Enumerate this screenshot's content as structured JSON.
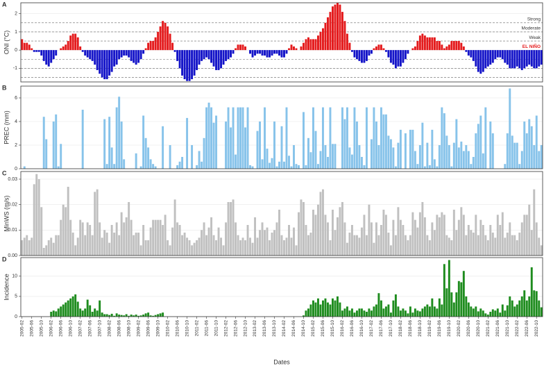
{
  "chart_data": [
    {
      "type": "bar",
      "title": "A",
      "ylabel": "ONI (°C)",
      "pos_color": "#e41a1c",
      "neg_color": "#1414c8",
      "ylim": [
        -1.75,
        2.6
      ],
      "yticks": [
        -1,
        0,
        1,
        2
      ],
      "grid": true,
      "hlines": [
        1.5,
        1,
        0.5,
        -0.5,
        -1,
        -1.5
      ],
      "annotations": [
        {
          "text": "Strong",
          "y": 1.5,
          "color": "#333333"
        },
        {
          "text": "Moderate",
          "y": 1,
          "color": "#333333"
        },
        {
          "text": "Weak",
          "y": 0.5,
          "color": "#333333"
        },
        {
          "text": "EL NIÑO",
          "y": 0,
          "color": "#e41a1c"
        }
      ],
      "values": [
        0.6,
        0.4,
        0.4,
        0.3,
        0.1,
        -0.1,
        -0.1,
        -0.1,
        -0.3,
        -0.6,
        -0.8,
        -0.9,
        -0.7,
        -0.5,
        -0.3,
        0.0,
        0.1,
        0.2,
        0.3,
        0.5,
        0.8,
        0.9,
        0.9,
        0.7,
        0.2,
        -0.1,
        -0.3,
        -0.4,
        -0.5,
        -0.6,
        -0.8,
        -1.1,
        -1.3,
        -1.5,
        -1.6,
        -1.6,
        -1.4,
        -1.2,
        -0.9,
        -0.8,
        -0.5,
        -0.4,
        -0.3,
        -0.3,
        -0.4,
        -0.6,
        -0.7,
        -0.8,
        -0.7,
        -0.5,
        -0.2,
        0.1,
        0.4,
        0.5,
        0.5,
        0.7,
        1.0,
        1.3,
        1.6,
        1.5,
        1.3,
        0.9,
        0.4,
        -0.1,
        -0.6,
        -1.0,
        -1.4,
        -1.6,
        -1.7,
        -1.7,
        -1.6,
        -1.4,
        -1.1,
        -0.8,
        -0.6,
        -0.5,
        -0.4,
        -0.5,
        -0.7,
        -0.9,
        -1.1,
        -1.1,
        -1.0,
        -0.8,
        -0.6,
        -0.5,
        -0.4,
        -0.2,
        0.1,
        0.3,
        0.3,
        0.3,
        0.2,
        0.0,
        -0.2,
        -0.4,
        -0.3,
        -0.2,
        -0.2,
        -0.3,
        -0.3,
        -0.4,
        -0.4,
        -0.3,
        -0.2,
        -0.2,
        -0.3,
        -0.4,
        -0.4,
        -0.2,
        0.1,
        0.3,
        0.2,
        0.1,
        0.0,
        0.2,
        0.4,
        0.6,
        0.7,
        0.6,
        0.6,
        0.6,
        0.8,
        1.0,
        1.2,
        1.5,
        1.8,
        2.1,
        2.4,
        2.5,
        2.6,
        2.5,
        2.1,
        1.6,
        0.9,
        0.4,
        -0.1,
        -0.4,
        -0.5,
        -0.6,
        -0.7,
        -0.7,
        -0.6,
        -0.3,
        -0.2,
        0.1,
        0.2,
        0.3,
        0.3,
        0.1,
        -0.1,
        -0.4,
        -0.7,
        -0.8,
        -1.0,
        -0.9,
        -0.9,
        -0.7,
        -0.5,
        -0.2,
        0.0,
        0.1,
        0.2,
        0.5,
        0.8,
        0.9,
        0.8,
        0.7,
        0.7,
        0.7,
        0.7,
        0.5,
        0.5,
        0.3,
        0.1,
        0.2,
        0.3,
        0.5,
        0.5,
        0.5,
        0.5,
        0.4,
        0.2,
        -0.1,
        -0.3,
        -0.4,
        -0.6,
        -0.9,
        -1.2,
        -1.3,
        -1.2,
        -1.0,
        -0.9,
        -0.8,
        -0.7,
        -0.5,
        -0.4,
        -0.4,
        -0.5,
        -0.7,
        -0.8,
        -1.0,
        -1.0,
        -1.0,
        -0.9,
        -1.0,
        -1.1,
        -1.0,
        -0.9,
        -0.8,
        -0.9,
        -1.0,
        -1.0,
        -0.9,
        -0.8
      ]
    },
    {
      "type": "bar",
      "title": "B",
      "ylabel": "PREC (mm)",
      "color": "#87c3ea",
      "ylim": [
        0,
        7
      ],
      "yticks": [
        0,
        2,
        4,
        6
      ],
      "grid": true,
      "values": [
        0,
        0.2,
        0,
        0,
        0,
        0,
        0,
        0,
        0,
        4.4,
        2.5,
        0,
        0,
        4.0,
        4.6,
        0.2,
        2.1,
        0,
        0,
        0,
        0,
        0,
        0,
        0,
        0,
        5.0,
        0,
        0,
        0,
        0,
        0,
        0,
        0,
        0,
        4.2,
        0.4,
        4.4,
        1.8,
        0.4,
        5.2,
        6.1,
        4.0,
        0.8,
        0,
        0,
        0,
        0,
        1.3,
        0,
        0.2,
        4.5,
        2.6,
        1.8,
        0.8,
        0.4,
        0.2,
        0,
        0,
        3.6,
        0,
        0,
        2.0,
        0,
        0,
        0.3,
        0.6,
        1.0,
        0,
        4.3,
        0,
        2.0,
        0,
        0.3,
        1.5,
        0.6,
        2.6,
        5.2,
        5.6,
        5.2,
        3.9,
        4.5,
        0,
        0,
        0,
        4.0,
        5.2,
        3.5,
        5.2,
        1.2,
        5.2,
        5.2,
        5.2,
        3.5,
        5.2,
        0.3,
        0.2,
        0,
        3.2,
        4.0,
        0.8,
        5.2,
        1.7,
        0.5,
        0.9,
        4.0,
        0.2,
        0.6,
        3.6,
        0.6,
        5.2,
        1.1,
        0.2,
        2.0,
        0.4,
        0.3,
        0,
        4.8,
        0.3,
        2.6,
        1.4,
        5.2,
        3.2,
        0.4,
        1.5,
        5.2,
        2.0,
        1.0,
        5.2,
        2.1,
        2.1,
        0,
        0,
        5.2,
        4.2,
        5.2,
        1.8,
        1.2,
        5.2,
        4.0,
        2.0,
        1.0,
        0.3,
        5.2,
        0,
        2.5,
        5.2,
        4.0,
        2.0,
        5.2,
        4.6,
        4.6,
        2.8,
        2.5,
        1.8,
        0.2,
        2.2,
        3.3,
        0,
        3.0,
        0,
        3.3,
        3.3,
        1.5,
        0.4,
        2.0,
        3.9,
        0.2,
        2.2,
        0.3,
        3.3,
        0.8,
        0.2,
        2.0,
        5.2,
        4.7,
        2.8,
        2.0,
        0.2,
        2.2,
        4.2,
        1.8,
        2.3,
        1.5,
        2.0,
        1.5,
        0.4,
        1.0,
        3.0,
        3.8,
        4.5,
        1.3,
        5.2,
        0,
        4.0,
        3.0,
        0,
        0,
        0,
        0,
        0.4,
        3.0,
        6.8,
        2.8,
        2.2,
        2.2,
        0.4,
        1.5,
        4.0,
        3.0,
        4.2,
        3.6,
        2.0,
        4.5,
        1.5,
        2.0
      ]
    },
    {
      "type": "bar",
      "title": "C",
      "ylabel": "MinWS (m/s)",
      "color": "#c0c0c0",
      "ylim": [
        0,
        0.033
      ],
      "yticks": [
        {
          "value": 0,
          "label": "0.00"
        },
        0.01,
        0.02,
        0.03
      ],
      "grid": true,
      "values": [
        0.006,
        0.007,
        0.008,
        0.006,
        0.007,
        0.028,
        0.032,
        0.03,
        0.019,
        0.003,
        0.004,
        0.006,
        0.007,
        0.005,
        0.008,
        0.008,
        0.014,
        0.02,
        0.019,
        0.027,
        0.014,
        0.009,
        0.004,
        0.007,
        0.014,
        0.013,
        0.008,
        0.013,
        0.012,
        0.008,
        0.025,
        0.026,
        0.013,
        0.007,
        0.01,
        0.009,
        0.005,
        0.012,
        0.009,
        0.013,
        0.008,
        0.017,
        0.013,
        0.015,
        0.021,
        0.014,
        0.008,
        0.009,
        0.009,
        0.004,
        0.012,
        0.006,
        0.006,
        0.011,
        0.014,
        0.014,
        0.014,
        0.014,
        0.012,
        0.016,
        0.006,
        0.004,
        0.011,
        0.022,
        0.013,
        0.012,
        0.008,
        0.009,
        0.007,
        0.006,
        0.004,
        0.005,
        0.006,
        0.007,
        0.01,
        0.013,
        0.008,
        0.011,
        0.015,
        0.008,
        0.006,
        0.011,
        0.007,
        0.004,
        0.013,
        0.021,
        0.021,
        0.022,
        0.013,
        0.008,
        0.006,
        0.007,
        0.006,
        0.012,
        0.007,
        0.005,
        0.015,
        0.007,
        0.01,
        0.013,
        0.01,
        0.011,
        0.006,
        0.009,
        0.01,
        0.013,
        0.018,
        0.008,
        0.006,
        0.007,
        0.012,
        0.007,
        0.011,
        0.004,
        0.017,
        0.022,
        0.021,
        0.012,
        0.008,
        0.009,
        0.018,
        0.016,
        0.02,
        0.025,
        0.026,
        0.016,
        0.013,
        0.006,
        0.018,
        0.01,
        0.015,
        0.019,
        0.021,
        0.013,
        0.005,
        0.009,
        0.012,
        0.008,
        0.008,
        0.007,
        0.011,
        0.016,
        0.008,
        0.02,
        0.013,
        0.005,
        0.013,
        0.008,
        0.012,
        0.018,
        0.016,
        0.009,
        0.004,
        0.014,
        0.008,
        0.019,
        0.014,
        0.012,
        0.008,
        0.006,
        0.008,
        0.017,
        0.014,
        0.011,
        0.017,
        0.021,
        0.015,
        0.008,
        0.006,
        0.013,
        0.01,
        0.016,
        0.015,
        0.017,
        0.016,
        0.008,
        0.007,
        0.006,
        0.018,
        0.01,
        0.014,
        0.019,
        0.016,
        0.008,
        0.012,
        0.01,
        0.009,
        0.016,
        0.008,
        0.014,
        0.012,
        0.008,
        0.006,
        0.012,
        0.009,
        0.007,
        0.016,
        0.012,
        0.017,
        0.007,
        0.009,
        0.013,
        0.008,
        0.008,
        0.006,
        0.009,
        0.013,
        0.016,
        0.016,
        0.02,
        0.01,
        0.026,
        0.013,
        0.007,
        0.004
      ]
    },
    {
      "type": "bar",
      "title": "D",
      "ylabel": "Incidence",
      "xlabel": "Dates",
      "color": "#1e8c1e",
      "ylim": [
        0,
        14.6
      ],
      "yticks": [
        0,
        5,
        10
      ],
      "grid": true,
      "categories": [
        "2005-02",
        null,
        null,
        null,
        "2005-06",
        null,
        null,
        null,
        "2005-10",
        null,
        null,
        null,
        "2006-02",
        null,
        null,
        null,
        "2006-06",
        null,
        null,
        null,
        "2006-10",
        null,
        null,
        null,
        "2007-02",
        null,
        null,
        null,
        "2007-06",
        null,
        null,
        null,
        "2007-10",
        null,
        null,
        null,
        "2008-02",
        null,
        null,
        null,
        "2008-06",
        null,
        null,
        null,
        "2008-10",
        null,
        null,
        null,
        "2009-02",
        null,
        null,
        null,
        "2009-06",
        null,
        null,
        null,
        "2009-10",
        null,
        null,
        null,
        "2010-02",
        null,
        null,
        null,
        "2010-06",
        null,
        null,
        null,
        "2010-10",
        null,
        null,
        null,
        "2011-02",
        null,
        null,
        null,
        "2011-06",
        null,
        null,
        null,
        "2011-10",
        null,
        null,
        null,
        "2012-02",
        null,
        null,
        null,
        "2012-06",
        null,
        null,
        null,
        "2012-10",
        null,
        null,
        null,
        "2013-02",
        null,
        null,
        null,
        "2013-06",
        null,
        null,
        null,
        "2013-10",
        null,
        null,
        null,
        "2014-02",
        null,
        null,
        null,
        "2014-06",
        null,
        null,
        null,
        "2014-10",
        null,
        null,
        null,
        "2015-02",
        null,
        null,
        null,
        "2015-06",
        null,
        null,
        null,
        "2015-10",
        null,
        null,
        null,
        "2016-02",
        null,
        null,
        null,
        "2016-06",
        null,
        null,
        null,
        "2016-10",
        null,
        null,
        null,
        "2017-02",
        null,
        null,
        null,
        "2017-06",
        null,
        null,
        null,
        "2017-10",
        null,
        null,
        null,
        "2018-02",
        null,
        null,
        null,
        "2018-06",
        null,
        null,
        null,
        "2018-10",
        null,
        null,
        null,
        "2019-02",
        null,
        null,
        null,
        "2019-06",
        null,
        null,
        null,
        "2019-10",
        null,
        null,
        null,
        "2020-02",
        null,
        null,
        null,
        "2020-06",
        null,
        null,
        null,
        "2020-10",
        null,
        null,
        null,
        "2021-02",
        null,
        null,
        null,
        "2021-06",
        null,
        null,
        null,
        "2021-10",
        null,
        null,
        null,
        "2022-02",
        null,
        null,
        null,
        "2022-06",
        null,
        null,
        null,
        "2022-10",
        null,
        null
      ],
      "values": [
        0,
        0,
        0,
        0,
        0,
        0,
        0,
        0,
        0,
        0,
        0,
        0,
        1.2,
        1.5,
        1.3,
        2.0,
        2.5,
        3.0,
        3.5,
        4.0,
        4.5,
        5.0,
        5.5,
        3.7,
        2.0,
        1.5,
        2.0,
        4.2,
        2.8,
        1.2,
        2.0,
        1.5,
        4.0,
        1.0,
        0.6,
        0.6,
        0.4,
        0.7,
        0.2,
        0.8,
        0.5,
        0.4,
        0.3,
        0.6,
        0.2,
        0.5,
        0.3,
        0.5,
        0.2,
        0.3,
        0.5,
        0.8,
        1.0,
        0.3,
        0.2,
        0.4,
        0.6,
        0.8,
        1.0,
        0,
        0,
        0,
        0,
        0,
        0,
        0,
        0,
        0,
        0,
        0,
        0,
        0,
        0,
        0,
        0,
        0,
        0,
        0,
        0,
        0,
        0,
        0,
        0,
        0,
        0,
        0,
        0,
        0,
        0,
        0,
        0,
        0,
        0,
        0,
        0,
        0,
        0,
        0,
        0,
        0,
        0,
        0,
        0,
        0,
        0,
        0,
        0,
        0,
        0,
        0,
        0,
        0,
        0,
        0,
        0,
        0,
        0.3,
        1.5,
        2.0,
        3.0,
        4.0,
        3.5,
        4.5,
        3.0,
        4.0,
        4.5,
        3.5,
        3.0,
        4.5,
        4.0,
        5.0,
        3.5,
        1.5,
        2.0,
        2.5,
        1.5,
        2.0,
        1.0,
        1.5,
        2.0,
        2.0,
        1.5,
        1.2,
        2.0,
        1.5,
        2.5,
        3.0,
        5.8,
        4.0,
        2.0,
        2.5,
        3.0,
        1.0,
        4.0,
        5.5,
        2.5,
        1.5,
        2.0,
        1.5,
        0.8,
        2.5,
        1.0,
        2.0,
        1.5,
        1.3,
        2.0,
        2.5,
        3.0,
        2.5,
        4.5,
        2.5,
        2.0,
        4.5,
        3.0,
        13.0,
        7.0,
        14.0,
        6.0,
        3.5,
        6.0,
        8.8,
        8.5,
        11.3,
        5.0,
        3.5,
        2.5,
        2.0,
        2.5,
        1.3,
        2.0,
        1.5,
        0.8,
        0.5,
        1.2,
        1.8,
        1.5,
        2.0,
        1.0,
        3.0,
        1.5,
        2.8,
        5.0,
        4.0,
        2.5,
        3.0,
        4.0,
        5.0,
        6.5,
        4.0,
        5.0,
        12.2,
        6.5,
        6.3,
        4.0,
        2.3
      ]
    }
  ]
}
